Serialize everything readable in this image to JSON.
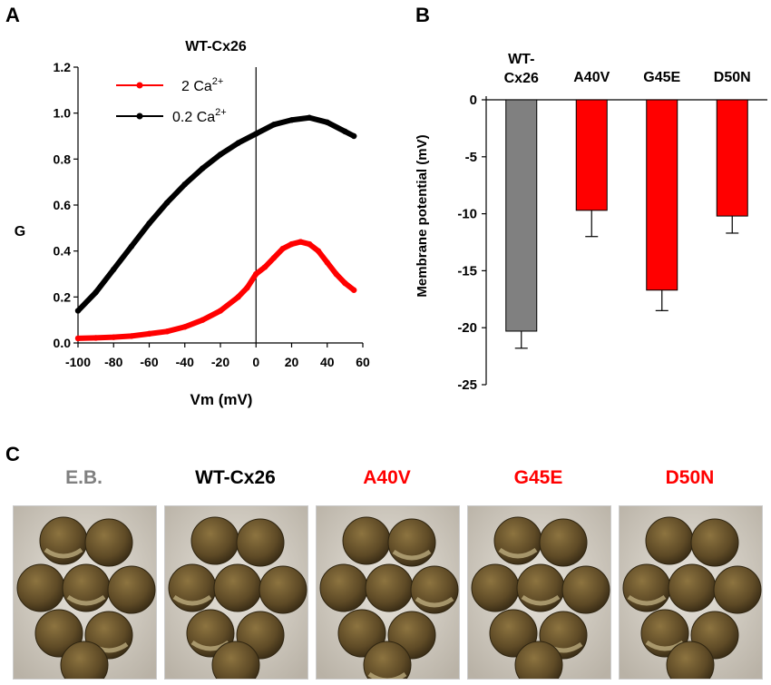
{
  "panels": {
    "a": "A",
    "b": "B",
    "c": "C"
  },
  "chart_data": [
    {
      "type": "line",
      "title": "WT-Cx26",
      "xlabel": "Vm (mV)",
      "ylabel": "G",
      "xlim": [
        -100,
        60
      ],
      "ylim": [
        0,
        1.2
      ],
      "xticks": [
        -100,
        -80,
        -60,
        -40,
        -20,
        0,
        20,
        40,
        60
      ],
      "xtick_labels": [
        "-100",
        "-80",
        "-60",
        "-40",
        "-20",
        "0",
        "20",
        "40",
        "60"
      ],
      "yticks": [
        0,
        0.2,
        0.4,
        0.6,
        0.8,
        1.0,
        1.2
      ],
      "ytick_labels": [
        "0.0",
        "0.2",
        "0.4",
        "0.6",
        "0.8",
        "1.0",
        "1.2"
      ],
      "legend_position": "top-left",
      "series": [
        {
          "name": "2 Ca",
          "name_sup": "2+",
          "color": "#ff0000",
          "x": [
            -100,
            -90,
            -80,
            -70,
            -60,
            -50,
            -40,
            -30,
            -20,
            -10,
            -5,
            0,
            5,
            10,
            15,
            20,
            25,
            30,
            35,
            40,
            45,
            50,
            55
          ],
          "y": [
            0.02,
            0.022,
            0.025,
            0.03,
            0.04,
            0.05,
            0.07,
            0.1,
            0.14,
            0.2,
            0.24,
            0.3,
            0.33,
            0.37,
            0.41,
            0.43,
            0.44,
            0.43,
            0.4,
            0.35,
            0.3,
            0.26,
            0.23
          ]
        },
        {
          "name": "0.2 Ca",
          "name_sup": "2+",
          "color": "#000000",
          "x": [
            -100,
            -90,
            -80,
            -70,
            -60,
            -50,
            -40,
            -30,
            -20,
            -10,
            0,
            10,
            20,
            30,
            40,
            50,
            55
          ],
          "y": [
            0.14,
            0.22,
            0.32,
            0.42,
            0.52,
            0.61,
            0.69,
            0.76,
            0.82,
            0.87,
            0.91,
            0.95,
            0.97,
            0.98,
            0.96,
            0.92,
            0.9
          ]
        }
      ]
    },
    {
      "type": "bar",
      "ylabel": "Membrane potential (mV)",
      "ylim": [
        -25,
        0
      ],
      "yticks": [
        0,
        -5,
        -10,
        -15,
        -20,
        -25
      ],
      "ytick_labels": [
        "0",
        "-5",
        "-10",
        "-15",
        "-20",
        "-25"
      ],
      "categories": [
        {
          "lines": [
            "WT-",
            "Cx26"
          ],
          "value": -20.3,
          "error": 1.5,
          "color": "#808080"
        },
        {
          "lines": [
            "A40V"
          ],
          "value": -9.7,
          "error": 2.3,
          "color": "#ff0000"
        },
        {
          "lines": [
            "G45E"
          ],
          "value": -16.7,
          "error": 1.8,
          "color": "#ff0000"
        },
        {
          "lines": [
            "D50N"
          ],
          "value": -10.2,
          "error": 1.5,
          "color": "#ff0000"
        }
      ]
    }
  ],
  "photos": [
    {
      "label": "E.B.",
      "color": "#808080"
    },
    {
      "label": "WT-Cx26",
      "color": "#000000"
    },
    {
      "label": "A40V",
      "color": "#ff0000"
    },
    {
      "label": "G45E",
      "color": "#ff0000"
    },
    {
      "label": "D50N",
      "color": "#ff0000"
    }
  ]
}
